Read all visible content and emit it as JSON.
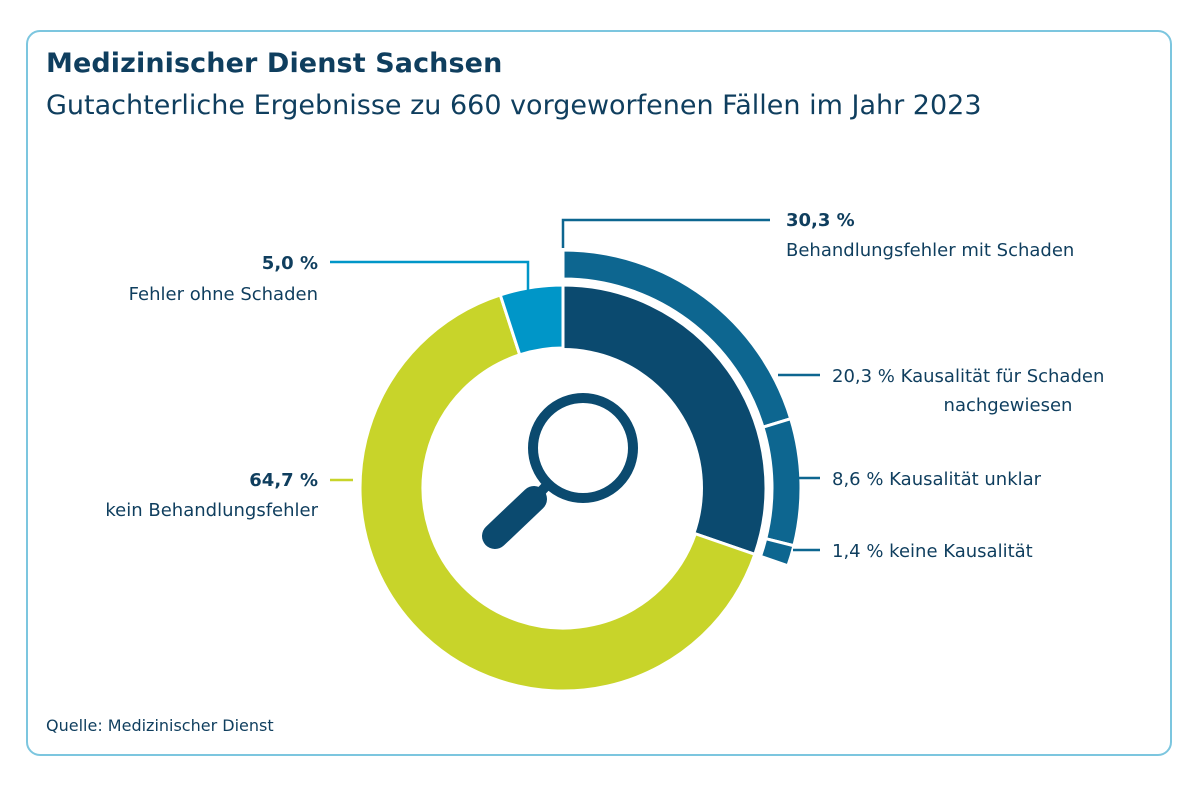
{
  "header": {
    "title": "Medizinischer Dienst Sachsen",
    "subtitle": "Gutachterliche Ergebnisse zu 660 vorgeworfenen Fällen im Jahr 2023"
  },
  "footer": {
    "source": "Quelle: Medizinischer Dienst"
  },
  "icon": "magnifier-icon",
  "chart_data": {
    "type": "pie",
    "title": "Gutachterliche Ergebnisse zu 660 vorgeworfenen Fällen im Jahr 2023",
    "total_cases": 660,
    "slices": [
      {
        "value": 30.3,
        "label_value": "30,3 %",
        "label": "Behandlungsfehler mit Schaden",
        "color": "#0b4a6f"
      },
      {
        "value": 64.7,
        "label_value": "64,7 %",
        "label": "kein Behandlungsfehler",
        "color": "#c8d42a"
      },
      {
        "value": 5.0,
        "label_value": "5,0 %",
        "label": "Fehler ohne Schaden",
        "color": "#0096c8"
      }
    ],
    "breakdown_of": "Behandlungsfehler mit Schaden",
    "breakdown": [
      {
        "value": 20.3,
        "label_value": "20,3 %",
        "label_line1": "Kausalität für Schaden",
        "label_line2": "nachgewiesen",
        "color": "#0d6690"
      },
      {
        "value": 8.6,
        "label_value": "8,6 %",
        "label_line1": "Kausalität unklar",
        "label_line2": "",
        "color": "#0d6690"
      },
      {
        "value": 1.4,
        "label_value": "1,4 %",
        "label_line1": "keine Kausalität",
        "label_line2": "",
        "color": "#0d6690"
      }
    ],
    "colors": {
      "line_color": "#0d6690",
      "green_line": "#c8d42a",
      "light_line": "#0096c8"
    }
  }
}
